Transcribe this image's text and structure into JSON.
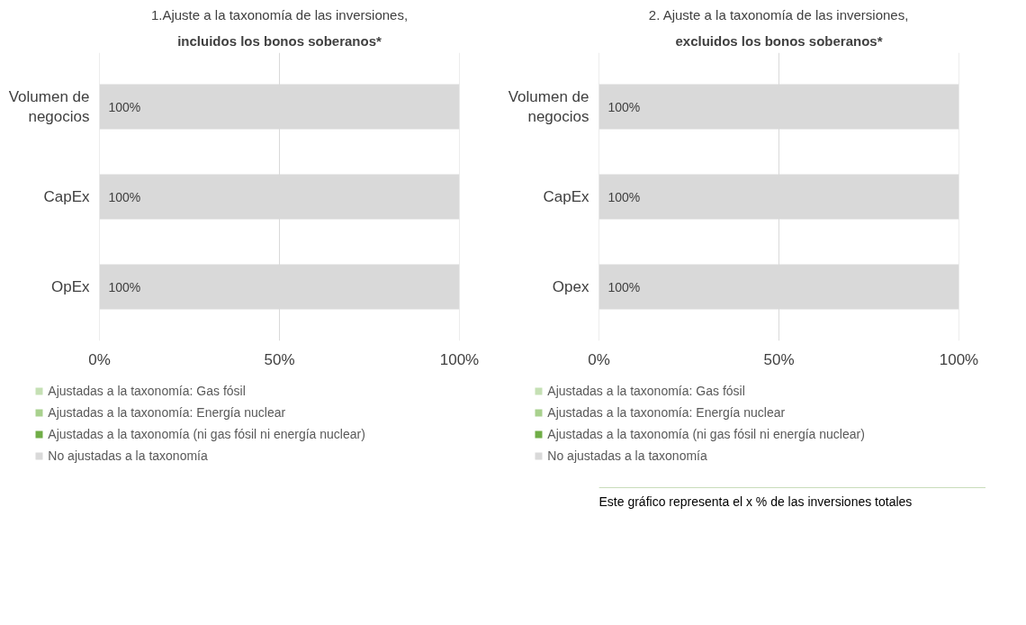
{
  "chart_data": [
    {
      "type": "bar",
      "orientation": "horizontal",
      "stacked": true,
      "title": "1.Ajuste a la taxonomía de las inversiones,",
      "subtitle": "incluidos los bonos soberanos*",
      "categories": [
        "Volumen de negocios",
        "CapEx",
        "OpEx"
      ],
      "xlim": [
        0,
        100
      ],
      "xticks": [
        {
          "value": 0,
          "label": "0%"
        },
        {
          "value": 50,
          "label": "50%"
        },
        {
          "value": 100,
          "label": "100%"
        }
      ],
      "grid": "x",
      "legend": "bottom",
      "series": [
        {
          "name": "Ajustadas a la taxonomía: Gas fósil",
          "color": "#c5e0b4",
          "values": [
            0,
            0,
            0
          ]
        },
        {
          "name": "Ajustadas a la taxonomía: Energía nuclear",
          "color": "#a9d18e",
          "values": [
            0,
            0,
            0
          ]
        },
        {
          "name": "Ajustadas a la taxonomía (ni gas fósil ni energía nuclear)",
          "color": "#70ad47",
          "values": [
            0,
            0,
            0
          ]
        },
        {
          "name": "No ajustadas a la taxonomía",
          "color": "#d9d9d9",
          "values": [
            100,
            100,
            100
          ],
          "value_labels": [
            "100%",
            "100%",
            "100%"
          ]
        }
      ]
    },
    {
      "type": "bar",
      "orientation": "horizontal",
      "stacked": true,
      "title": "2. Ajuste a la taxonomía de las inversiones,",
      "subtitle": "excluidos los bonos soberanos*",
      "categories": [
        "Volumen de negocios",
        "CapEx",
        "Opex"
      ],
      "xlim": [
        0,
        100
      ],
      "xticks": [
        {
          "value": 0,
          "label": "0%"
        },
        {
          "value": 50,
          "label": "50%"
        },
        {
          "value": 100,
          "label": "100%"
        }
      ],
      "grid": "x",
      "legend": "bottom",
      "annotations": [
        "Este gráfico representa el x % de las inversiones totales"
      ],
      "series": [
        {
          "name": "Ajustadas a la taxonomía: Gas fósil",
          "color": "#c5e0b4",
          "values": [
            0,
            0,
            0
          ]
        },
        {
          "name": "Ajustadas a la taxonomía: Energía nuclear",
          "color": "#a9d18e",
          "values": [
            0,
            0,
            0
          ]
        },
        {
          "name": "Ajustadas a la taxonomía (ni gas fósil ni energía nuclear)",
          "color": "#70ad47",
          "values": [
            0,
            0,
            0
          ]
        },
        {
          "name": "No ajustadas a la taxonomía",
          "color": "#d9d9d9",
          "values": [
            100,
            100,
            100
          ],
          "value_labels": [
            "100%",
            "100%",
            "100%"
          ]
        }
      ]
    }
  ]
}
